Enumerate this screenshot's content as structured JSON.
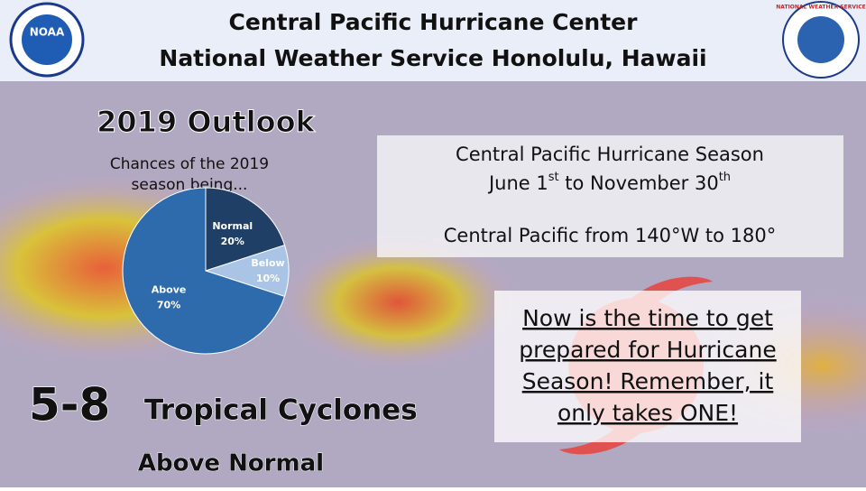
{
  "header": {
    "line1": "Central Pacific Hurricane Center",
    "line2": "National Weather Service Honolulu, Hawaii"
  },
  "logos": {
    "noaa": "NOAA",
    "nws": "NATIONAL WEATHER SERVICE"
  },
  "outlook": {
    "title": "2019 Outlook",
    "subtitle_lines": [
      "Chances of the 2019",
      "season being..."
    ]
  },
  "chart_data": {
    "type": "pie",
    "categories": [
      "Normal",
      "Below",
      "Above"
    ],
    "values": [
      20,
      10,
      70
    ],
    "value_labels": [
      "20%",
      "10%",
      "70%"
    ],
    "colors": [
      "#1f3f66",
      "#a9c4e4",
      "#2e6bad"
    ]
  },
  "season": {
    "title": "Central Pacific Hurricane Season",
    "dates": [
      "June 1",
      "st",
      " to November 30",
      "th"
    ],
    "region": "Central Pacific from 140°W to 180°"
  },
  "forecast": {
    "count": "5-8",
    "label": "Tropical Cyclones",
    "note": "Above Normal"
  },
  "message": {
    "lines": [
      "Now is the time to get",
      "prepared for Hurricane",
      "Season! Remember, it",
      "only takes ONE!"
    ]
  }
}
